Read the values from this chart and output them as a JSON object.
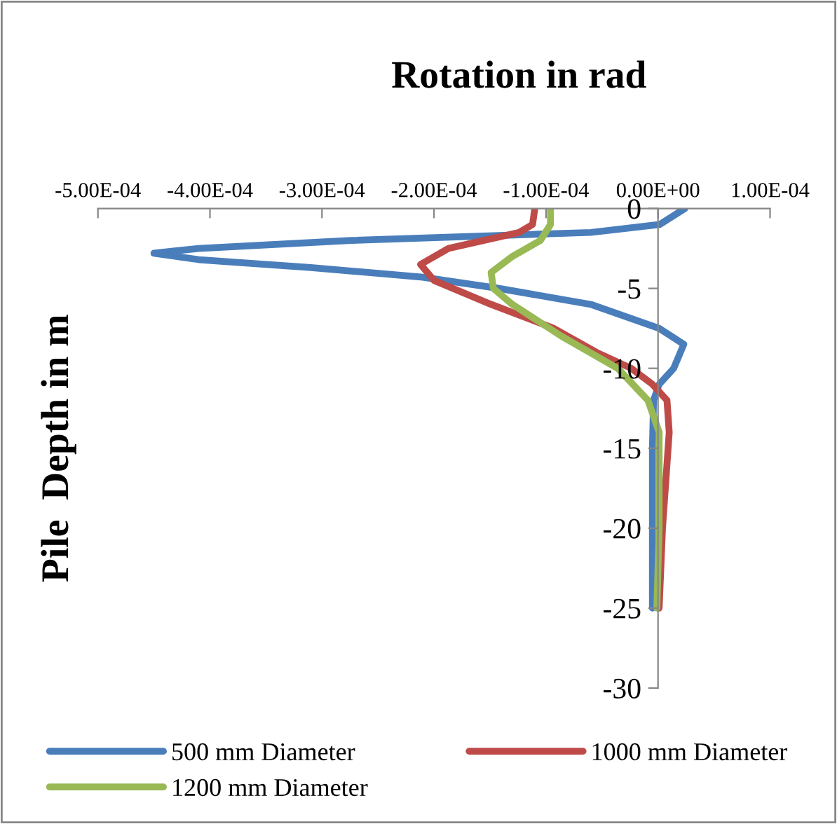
{
  "chart_data": {
    "type": "line",
    "title": "Rotation in rad",
    "ylabel": "Pile  Depth in m",
    "xlim": [
      -0.0005,
      0.0001
    ],
    "xticks": [
      {
        "value": -0.0005,
        "label": "-5.00E-04"
      },
      {
        "value": -0.0004,
        "label": "-4.00E-04"
      },
      {
        "value": -0.0003,
        "label": "-3.00E-04"
      },
      {
        "value": -0.0002,
        "label": "-2.00E-04"
      },
      {
        "value": -0.0001,
        "label": "-1.00E-04"
      },
      {
        "value": 0,
        "label": "0.00E+00"
      },
      {
        "value": 0.0001,
        "label": "1.00E-04"
      }
    ],
    "ylim": [
      -30,
      0
    ],
    "yticks": [
      0,
      -5,
      -10,
      -15,
      -20,
      -25,
      -30
    ],
    "grid": false,
    "legend": "bottom",
    "marker": "none",
    "line_style": "solid",
    "series": [
      {
        "name": "500 mm Diameter",
        "color": "#4a7ebb",
        "x": [
          2.4e-05,
          1.5e-06,
          -6e-05,
          -0.000274,
          -0.00041,
          -0.00045,
          -0.00041,
          -0.00031,
          -0.00021,
          -0.000142,
          -6e-05,
          1e-06,
          2.3e-05,
          1.4e-05,
          1e-06,
          -4e-06,
          -5e-06,
          -5e-06,
          -5e-06
        ],
        "values": [
          0,
          -1,
          -1.5,
          -2,
          -2.5,
          -2.8,
          -3.2,
          -3.7,
          -4.3,
          -5,
          -6,
          -7.5,
          -8.5,
          -10,
          -11,
          -12,
          -15,
          -20,
          -25
        ]
      },
      {
        "name": "1000 mm Diameter",
        "color": "#be4b48",
        "x": [
          -0.00011,
          -0.000112,
          -0.000124,
          -0.000187,
          -0.000212,
          -0.0002,
          -0.000149,
          -9.3e-05,
          -5.5e-05,
          -2.4e-05,
          -5e-06,
          8e-06,
          1e-05,
          8e-06,
          4e-06,
          1e-06
        ],
        "values": [
          0,
          -1,
          -1.5,
          -2.5,
          -3.5,
          -4.5,
          -6,
          -7.5,
          -9,
          -10,
          -11,
          -12,
          -14,
          -16,
          -20,
          -25
        ]
      },
      {
        "name": "1200 mm Diameter",
        "color": "#98b954",
        "x": [
          -9.6e-05,
          -9.6e-05,
          -0.000105,
          -0.00013,
          -0.000149,
          -0.000147,
          -0.00013,
          -8.6e-05,
          -3.6e-05,
          -9e-06,
          1e-06,
          1e-06,
          -1e-06
        ],
        "values": [
          0,
          -1,
          -2,
          -3,
          -4,
          -5,
          -6,
          -8,
          -10,
          -12,
          -14,
          -20,
          -25
        ]
      }
    ]
  }
}
